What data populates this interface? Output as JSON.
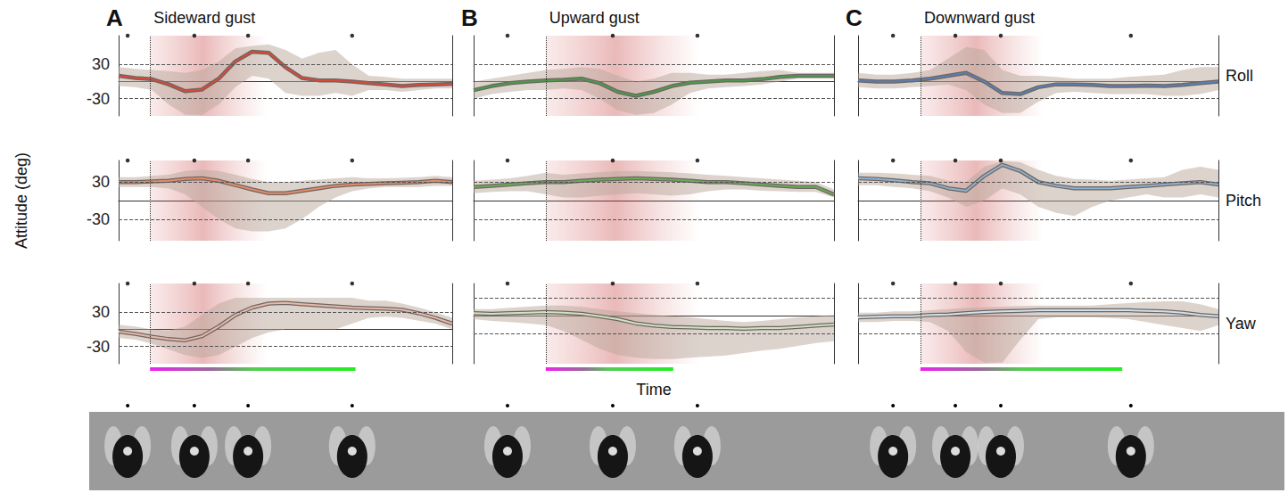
{
  "figure": {
    "y_label": "Attitude (deg)",
    "x_label": "Time"
  },
  "chart_data": [
    {
      "type": "line",
      "panel": "A",
      "title": "Sideward gust",
      "xlim": [
        0,
        100
      ],
      "ylim": [
        -60,
        80
      ],
      "yticks": [
        -30,
        30
      ],
      "grid": true,
      "tick_labels": "y",
      "x": [
        0,
        5,
        10,
        15,
        20,
        25,
        30,
        35,
        40,
        45,
        50,
        55,
        60,
        65,
        70,
        75,
        80,
        85,
        90,
        95,
        100
      ],
      "series": [
        {
          "color": "#d84a3a",
          "values": [
            10,
            6,
            4,
            -5,
            -17,
            -14,
            5,
            35,
            52,
            50,
            25,
            6,
            2,
            2,
            0,
            -3,
            -5,
            -8,
            -6,
            -5,
            -4
          ],
          "lower": [
            -8,
            -10,
            -15,
            -40,
            -58,
            -58,
            -40,
            -10,
            10,
            5,
            -20,
            -25,
            -25,
            -20,
            -25,
            -15,
            -15,
            -18,
            -15,
            -12,
            -12
          ],
          "upper": [
            25,
            22,
            20,
            18,
            15,
            20,
            35,
            58,
            62,
            65,
            55,
            40,
            50,
            55,
            30,
            10,
            8,
            5,
            5,
            5,
            5
          ]
        }
      ],
      "gust": [
        9.4,
        44.7
      ],
      "phase": [
        9.4,
        71
      ],
      "snapshots": [
        2.7,
        22.7,
        38.8,
        70
      ]
    },
    {
      "type": "line",
      "xlim": [
        0,
        100
      ],
      "ylim": [
        -65,
        65
      ],
      "yticks": [
        -30,
        30
      ],
      "grid": true,
      "tick_labels": "y",
      "x": [
        0,
        5,
        10,
        15,
        20,
        25,
        30,
        35,
        40,
        45,
        50,
        55,
        60,
        65,
        70,
        75,
        80,
        85,
        90,
        95,
        100
      ],
      "series": [
        {
          "color": "#e58a6a",
          "values": [
            30,
            30,
            31,
            32,
            35,
            36,
            32,
            25,
            18,
            12,
            12,
            16,
            20,
            24,
            26,
            27,
            28,
            29,
            30,
            32,
            30
          ],
          "lower": [
            22,
            22,
            22,
            20,
            10,
            -10,
            -30,
            -45,
            -50,
            -50,
            -45,
            -30,
            -10,
            5,
            15,
            20,
            22,
            22,
            22,
            24,
            24
          ],
          "upper": [
            38,
            38,
            40,
            42,
            48,
            50,
            48,
            42,
            35,
            30,
            30,
            32,
            34,
            36,
            38,
            36,
            36,
            37,
            38,
            40,
            38
          ]
        }
      ],
      "gust": [
        9.4,
        44.7
      ],
      "phase": [
        9.4,
        71
      ],
      "snapshots": [
        2.7,
        22.7,
        38.8,
        70
      ]
    },
    {
      "type": "line",
      "xlim": [
        0,
        100
      ],
      "ylim": [
        -60,
        80
      ],
      "yticks": [
        -30,
        30
      ],
      "grid": true,
      "tick_labels": "y",
      "x": [
        0,
        5,
        10,
        15,
        20,
        25,
        30,
        35,
        40,
        45,
        50,
        55,
        60,
        65,
        70,
        75,
        80,
        85,
        90,
        95,
        100
      ],
      "series": [
        {
          "color": "#e8b8a8",
          "values": [
            -4,
            -8,
            -13,
            -17,
            -19,
            -12,
            5,
            25,
            38,
            45,
            46,
            44,
            42,
            40,
            38,
            37,
            36,
            34,
            28,
            20,
            10
          ],
          "lower": [
            -15,
            -18,
            -25,
            -35,
            -45,
            -50,
            -45,
            -30,
            -15,
            -5,
            0,
            0,
            0,
            0,
            10,
            20,
            22,
            20,
            15,
            10,
            0
          ],
          "upper": [
            8,
            5,
            0,
            -2,
            5,
            25,
            45,
            55,
            55,
            55,
            55,
            55,
            55,
            55,
            55,
            50,
            50,
            45,
            38,
            30,
            20
          ]
        }
      ],
      "gust": [
        9.4,
        44.7
      ],
      "phase": [
        9.4,
        71
      ],
      "snapshots": [
        2.7,
        22.7,
        38.8,
        70
      ]
    },
    {
      "type": "line",
      "panel": "B",
      "title": "Upward gust",
      "xlim": [
        0,
        100
      ],
      "ylim": [
        -60,
        80
      ],
      "yticks": [
        -30,
        30
      ],
      "grid": true,
      "tick_labels": false,
      "x": [
        0,
        5,
        10,
        15,
        20,
        25,
        30,
        35,
        40,
        45,
        50,
        55,
        60,
        65,
        70,
        75,
        80,
        85,
        90,
        95,
        100
      ],
      "series": [
        {
          "color": "#4c9a4c",
          "values": [
            -15,
            -8,
            -3,
            0,
            2,
            3,
            5,
            -3,
            -18,
            -25,
            -18,
            -8,
            -2,
            0,
            2,
            2,
            4,
            8,
            10,
            10,
            10
          ],
          "lower": [
            -30,
            -22,
            -18,
            -15,
            -15,
            -12,
            -15,
            -30,
            -50,
            -58,
            -55,
            -40,
            -20,
            -12,
            -10,
            -8,
            -5,
            0,
            5,
            5,
            5
          ],
          "upper": [
            0,
            5,
            10,
            15,
            20,
            22,
            25,
            22,
            10,
            0,
            5,
            15,
            15,
            12,
            12,
            15,
            18,
            20,
            15,
            15,
            15
          ]
        }
      ],
      "gust": [
        20,
        62.9
      ],
      "phase": [
        20,
        55.4
      ],
      "snapshots": [
        9.4,
        38.6,
        62.1
      ]
    },
    {
      "type": "line",
      "xlim": [
        0,
        100
      ],
      "ylim": [
        -65,
        65
      ],
      "yticks": [
        -30,
        30
      ],
      "grid": true,
      "tick_labels": false,
      "x": [
        0,
        5,
        10,
        15,
        20,
        25,
        30,
        35,
        40,
        45,
        50,
        55,
        60,
        65,
        70,
        75,
        80,
        85,
        90,
        95,
        100
      ],
      "series": [
        {
          "color": "#6aaa5a",
          "values": [
            22,
            24,
            26,
            28,
            30,
            30,
            32,
            34,
            35,
            36,
            35,
            34,
            32,
            30,
            30,
            28,
            26,
            24,
            22,
            22,
            10
          ],
          "lower": [
            12,
            14,
            15,
            15,
            10,
            5,
            5,
            8,
            10,
            12,
            10,
            8,
            10,
            15,
            18,
            18,
            16,
            15,
            14,
            14,
            5
          ],
          "upper": [
            32,
            34,
            36,
            40,
            45,
            42,
            44,
            46,
            48,
            48,
            47,
            46,
            44,
            42,
            40,
            38,
            36,
            34,
            32,
            30,
            18
          ]
        }
      ],
      "gust": [
        20,
        62.9
      ],
      "phase": [
        20,
        55.4
      ],
      "snapshots": [
        9.4,
        38.6,
        62.1
      ]
    },
    {
      "type": "line",
      "xlim": [
        0,
        100
      ],
      "ylim": [
        -80,
        55
      ],
      "yticks": [
        -30,
        30
      ],
      "grid": true,
      "tick_labels": false,
      "x": [
        0,
        5,
        10,
        15,
        20,
        25,
        30,
        35,
        40,
        45,
        50,
        55,
        60,
        65,
        70,
        75,
        80,
        85,
        90,
        95,
        100
      ],
      "series": [
        {
          "color": "#cfe3c3",
          "values": [
            5,
            4,
            5,
            6,
            7,
            6,
            4,
            0,
            -5,
            -12,
            -16,
            -18,
            -19,
            -20,
            -20,
            -21,
            -20,
            -20,
            -18,
            -16,
            -14
          ],
          "lower": [
            -5,
            -8,
            -10,
            -12,
            -15,
            -25,
            -40,
            -55,
            -65,
            -70,
            -72,
            -72,
            -70,
            -68,
            -66,
            -62,
            -58,
            -55,
            -50,
            -45,
            -42
          ],
          "upper": [
            12,
            12,
            14,
            16,
            18,
            18,
            16,
            12,
            8,
            5,
            2,
            0,
            -2,
            -5,
            -8,
            -10,
            -8,
            -5,
            -2,
            0,
            2
          ]
        }
      ],
      "gust": [
        20,
        62.9
      ],
      "phase": [
        20,
        55.4
      ],
      "snapshots": [
        9.4,
        38.6,
        62.1
      ]
    },
    {
      "type": "line",
      "panel": "C",
      "title": "Downward gust",
      "row_label": "Roll",
      "xlim": [
        0,
        100
      ],
      "ylim": [
        -60,
        80
      ],
      "yticks": [
        -30,
        30
      ],
      "grid": true,
      "tick_labels": false,
      "x": [
        0,
        5,
        10,
        15,
        20,
        25,
        30,
        35,
        40,
        45,
        50,
        55,
        60,
        65,
        70,
        75,
        80,
        85,
        90,
        95,
        100
      ],
      "series": [
        {
          "color": "#5a7fb0",
          "values": [
            2,
            0,
            0,
            2,
            5,
            10,
            15,
            0,
            -20,
            -22,
            -10,
            -5,
            -5,
            -6,
            -8,
            -8,
            -7,
            -8,
            -6,
            -3,
            0
          ],
          "lower": [
            -10,
            -12,
            -12,
            -10,
            -8,
            -5,
            -15,
            -40,
            -55,
            -55,
            -35,
            -20,
            -18,
            -20,
            -22,
            -22,
            -22,
            -25,
            -25,
            -22,
            -15
          ],
          "upper": [
            15,
            12,
            12,
            15,
            20,
            40,
            60,
            55,
            20,
            10,
            10,
            8,
            5,
            5,
            5,
            8,
            10,
            12,
            20,
            25,
            25
          ]
        }
      ],
      "gust": [
        17.3,
        51.5
      ],
      "phase": [
        17.3,
        73.3
      ],
      "snapshots": [
        9.7,
        27,
        39.6,
        75.7
      ]
    },
    {
      "type": "line",
      "row_label": "Pitch",
      "xlim": [
        0,
        100
      ],
      "ylim": [
        -65,
        65
      ],
      "yticks": [
        -30,
        30
      ],
      "grid": true,
      "tick_labels": false,
      "x": [
        0,
        5,
        10,
        15,
        20,
        25,
        30,
        35,
        40,
        45,
        50,
        55,
        60,
        65,
        70,
        75,
        80,
        85,
        90,
        95,
        100
      ],
      "series": [
        {
          "color": "#8fb0d0",
          "values": [
            36,
            35,
            33,
            30,
            28,
            20,
            16,
            40,
            58,
            48,
            30,
            24,
            20,
            20,
            20,
            22,
            24,
            26,
            28,
            30,
            26
          ],
          "lower": [
            25,
            25,
            22,
            20,
            15,
            5,
            -10,
            0,
            20,
            10,
            -10,
            -20,
            -25,
            -10,
            0,
            5,
            10,
            5,
            5,
            10,
            5
          ],
          "upper": [
            45,
            45,
            44,
            42,
            40,
            32,
            30,
            55,
            64,
            62,
            50,
            40,
            35,
            34,
            32,
            34,
            36,
            38,
            50,
            55,
            50
          ]
        }
      ],
      "gust": [
        17.3,
        51.5
      ],
      "phase": [
        17.3,
        73.3
      ],
      "snapshots": [
        9.7,
        27,
        39.6,
        75.7
      ]
    },
    {
      "type": "line",
      "row_label": "Yaw",
      "xlim": [
        0,
        100
      ],
      "ylim": [
        -80,
        55
      ],
      "yticks": [
        -30,
        30
      ],
      "grid": true,
      "tick_labels": false,
      "x": [
        0,
        5,
        10,
        15,
        20,
        25,
        30,
        35,
        40,
        45,
        50,
        55,
        60,
        65,
        70,
        75,
        80,
        85,
        90,
        95,
        100
      ],
      "series": [
        {
          "color": "#cfe0ef",
          "values": [
            -2,
            -1,
            0,
            0,
            2,
            3,
            5,
            7,
            8,
            9,
            10,
            10,
            10,
            10,
            10,
            10,
            9,
            8,
            6,
            2,
            0
          ],
          "lower": [
            -10,
            -10,
            -8,
            -8,
            -10,
            -25,
            -60,
            -78,
            -78,
            -40,
            -5,
            -2,
            -2,
            -2,
            -3,
            -5,
            -10,
            -15,
            -20,
            -25,
            -15
          ],
          "upper": [
            6,
            6,
            8,
            8,
            10,
            12,
            14,
            15,
            16,
            17,
            18,
            18,
            18,
            18,
            20,
            22,
            24,
            25,
            25,
            20,
            12
          ]
        }
      ],
      "gust": [
        17.3,
        51.5
      ],
      "phase": [
        17.3,
        73.3
      ],
      "snapshots": [
        9.7,
        27,
        39.6,
        75.7
      ]
    }
  ]
}
